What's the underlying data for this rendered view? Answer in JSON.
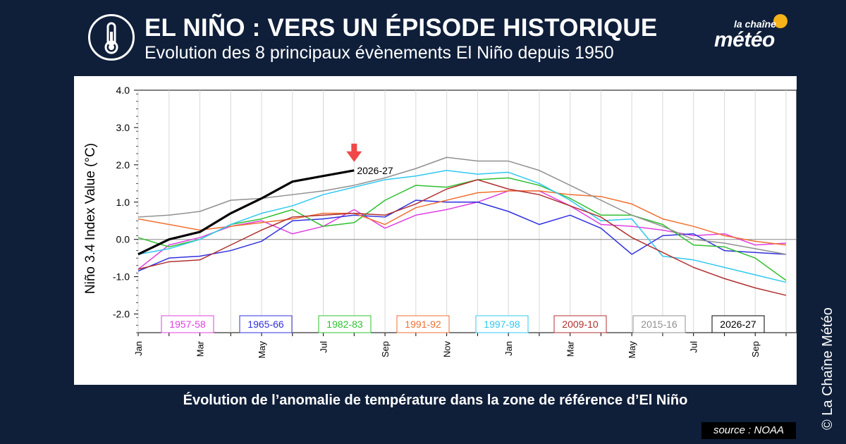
{
  "header": {
    "title": "EL NIÑO : VERS UN ÉPISODE HISTORIQUE",
    "subtitle": "Evolution des 8 principaux évènements El Niño depuis 1950",
    "icon": "thermometer-icon"
  },
  "brand": {
    "small": "la chaîne",
    "big": "météo"
  },
  "caption": "Évolution de l’anomalie de température dans la zone de référence d’El Niño",
  "source": "source : NOAA",
  "credit": "© La Chaîne Météo",
  "colors": {
    "background": "#0f1f3a",
    "1957-58": "#e040e0",
    "1965-66": "#3030e0",
    "1982-83": "#30c030",
    "1991-92": "#f07030",
    "1997-98": "#30c8f0",
    "2009-10": "#b03030",
    "2015-16": "#909090",
    "2026-27": "#000000",
    "arrow": "#f04848"
  },
  "chart_data": {
    "type": "line",
    "ylabel": "Niño 3.4 Index Value (°C)",
    "xlabel": "",
    "ylim": [
      -2.5,
      4.0
    ],
    "yticks": [
      "4.0",
      "3.0",
      "2.0",
      "1.0",
      "0.0",
      "-1.0",
      "-2.0"
    ],
    "yticks_values": [
      4,
      3,
      2,
      1,
      0,
      -1,
      -2
    ],
    "xlabels": [
      "Jan",
      "Mar",
      "May",
      "Jul",
      "Sep",
      "Nov",
      "Jan",
      "Mar",
      "May",
      "Jul",
      "Sep"
    ],
    "xlabels_index": [
      0,
      2,
      4,
      6,
      8,
      10,
      12,
      14,
      16,
      18,
      20
    ],
    "x_count": 22,
    "grid": "vertical",
    "zero_line": true,
    "legend_position": "bottom",
    "series": [
      {
        "name": "1957-58",
        "values": [
          -0.8,
          -0.15,
          0.05,
          0.35,
          0.5,
          0.15,
          0.35,
          0.8,
          0.3,
          0.65,
          0.8,
          1.0,
          1.3,
          1.3,
          0.9,
          0.4,
          0.35,
          0.25,
          0.1,
          0.15,
          -0.15,
          -0.1
        ]
      },
      {
        "name": "1965-66",
        "values": [
          -0.85,
          -0.5,
          -0.45,
          -0.3,
          -0.05,
          0.5,
          0.55,
          0.65,
          0.6,
          1.05,
          1.0,
          1.0,
          0.75,
          0.4,
          0.65,
          0.3,
          -0.4,
          0.1,
          0.15,
          -0.3,
          -0.35,
          -0.4
        ]
      },
      {
        "name": "1982-83",
        "values": [
          0.05,
          -0.2,
          0.0,
          0.4,
          0.55,
          0.8,
          0.35,
          0.45,
          1.05,
          1.45,
          1.4,
          1.6,
          1.65,
          1.45,
          1.1,
          0.65,
          0.65,
          0.4,
          -0.15,
          -0.2,
          -0.5,
          -1.1
        ]
      },
      {
        "name": "1991-92",
        "values": [
          0.55,
          0.4,
          0.25,
          0.35,
          0.45,
          0.55,
          0.7,
          0.7,
          0.4,
          0.85,
          1.05,
          1.25,
          1.3,
          1.3,
          1.2,
          1.15,
          0.95,
          0.55,
          0.35,
          0.1,
          -0.05,
          -0.15
        ]
      },
      {
        "name": "1997-98",
        "values": [
          -0.4,
          -0.25,
          0.0,
          0.4,
          0.7,
          0.9,
          1.2,
          1.4,
          1.6,
          1.7,
          1.85,
          1.75,
          1.8,
          1.5,
          1.05,
          0.5,
          0.55,
          -0.45,
          -0.55,
          -0.75,
          -0.95,
          -1.15
        ]
      },
      {
        "name": "2009-10",
        "values": [
          -0.8,
          -0.6,
          -0.55,
          -0.15,
          0.25,
          0.6,
          0.65,
          0.7,
          0.65,
          0.95,
          1.35,
          1.6,
          1.35,
          1.2,
          0.9,
          0.6,
          0.05,
          -0.35,
          -0.75,
          -1.05,
          -1.3,
          -1.5
        ]
      },
      {
        "name": "2015-16",
        "values": [
          0.6,
          0.65,
          0.75,
          1.05,
          1.1,
          1.2,
          1.3,
          1.45,
          1.65,
          1.9,
          2.2,
          2.1,
          2.1,
          1.85,
          1.45,
          1.05,
          0.65,
          0.35,
          0.0,
          -0.1,
          -0.25,
          -0.4
        ]
      },
      {
        "name": "2026-27",
        "values": [
          -0.4,
          0.0,
          0.2,
          0.7,
          1.1,
          1.55,
          1.7,
          1.85
        ]
      }
    ],
    "annotation": {
      "text": "2026-27",
      "series": "2026-27",
      "at_index": 7,
      "marker": "down-arrow"
    }
  }
}
